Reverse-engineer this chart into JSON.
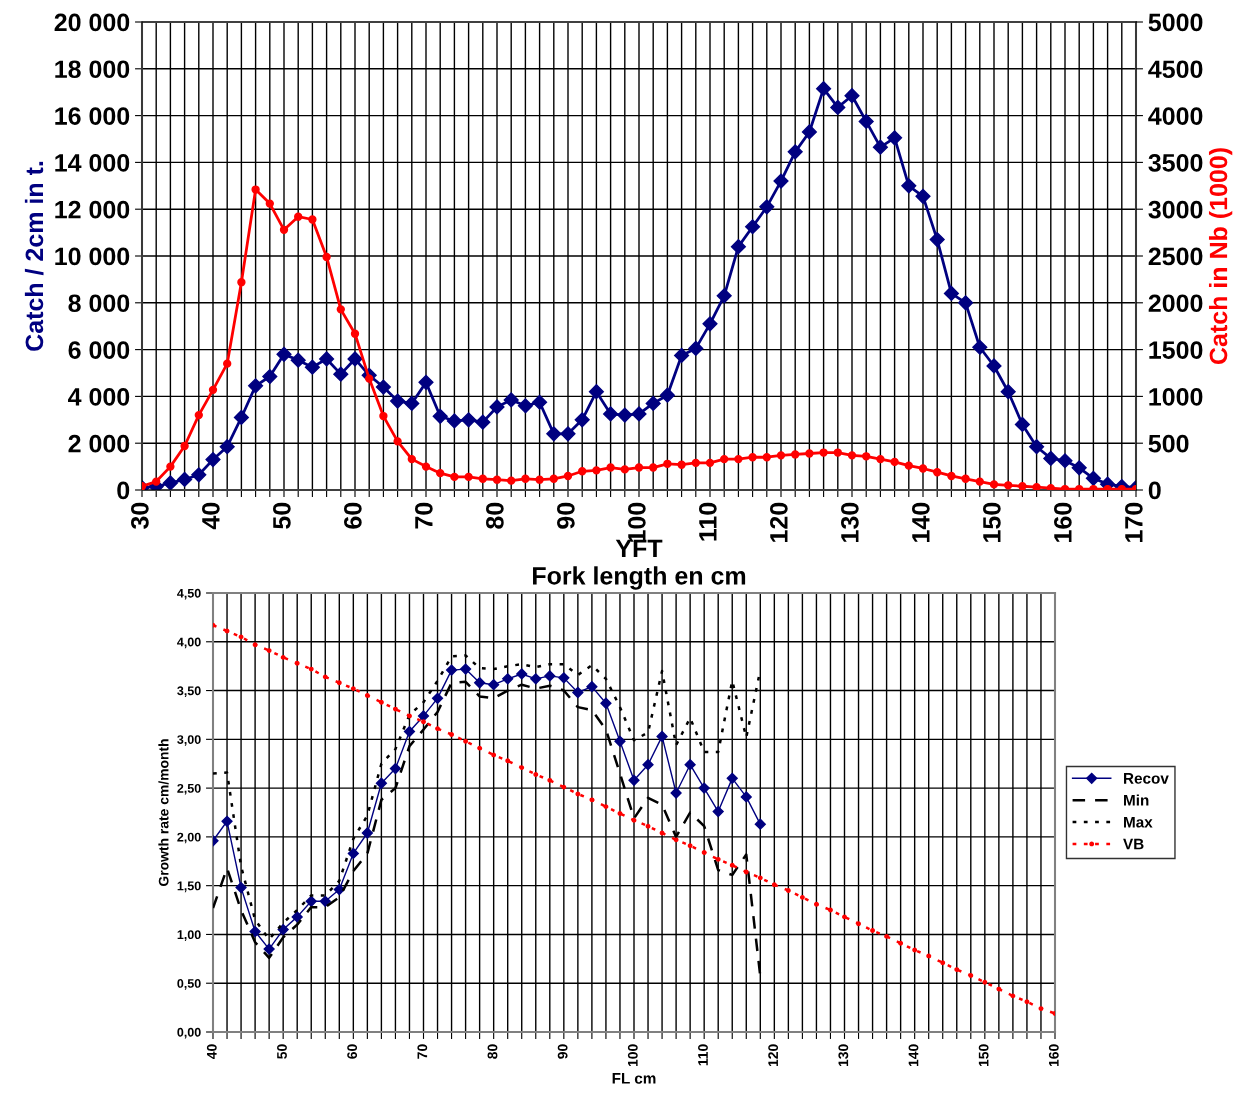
{
  "chart_data": [
    {
      "type": "line",
      "title": "YFT",
      "xlabel": "Fork length en cm",
      "ylabel": "Catch / 2cm in t.",
      "y2label": "Catch in Nb (1000)",
      "x": [
        30,
        32,
        34,
        36,
        38,
        40,
        42,
        44,
        46,
        48,
        50,
        52,
        54,
        56,
        58,
        60,
        62,
        64,
        66,
        68,
        70,
        72,
        74,
        76,
        78,
        80,
        82,
        84,
        86,
        88,
        90,
        92,
        94,
        96,
        98,
        100,
        102,
        104,
        106,
        108,
        110,
        112,
        114,
        116,
        118,
        120,
        122,
        124,
        126,
        128,
        130,
        132,
        134,
        136,
        138,
        140,
        142,
        144,
        146,
        148,
        150,
        152,
        154,
        156,
        158,
        160,
        162,
        164,
        166,
        168,
        170
      ],
      "series": [
        {
          "color": "#000080",
          "marker": "diamond",
          "values": [
            100,
            150,
            300,
            450,
            650,
            1300,
            1850,
            3100,
            4450,
            4850,
            5800,
            5550,
            5250,
            5600,
            4950,
            5600,
            4900,
            4400,
            3800,
            3700,
            4600,
            3150,
            2950,
            3000,
            2900,
            3550,
            3850,
            3600,
            3750,
            2400,
            2400,
            3000,
            4200,
            3250,
            3200,
            3250,
            3700,
            4050,
            5750,
            6050,
            7100,
            8300,
            10400,
            11250,
            12100,
            13200,
            14450,
            15300,
            17150,
            16350,
            16850,
            15750,
            14650,
            15050,
            13000,
            12550,
            10700,
            8400,
            8000,
            6100,
            5300,
            4200,
            2800,
            1850,
            1350,
            1250,
            950,
            500,
            250,
            150,
            100
          ]
        },
        {
          "color": "#ff0000",
          "marker": "circle",
          "axis": "y2",
          "values": [
            40,
            90,
            250,
            470,
            800,
            1070,
            1350,
            2220,
            3210,
            3060,
            2780,
            2920,
            2890,
            2490,
            1930,
            1670,
            1190,
            790,
            520,
            330,
            250,
            180,
            140,
            140,
            120,
            110,
            100,
            120,
            110,
            120,
            150,
            200,
            210,
            240,
            220,
            240,
            240,
            280,
            270,
            290,
            290,
            330,
            330,
            350,
            350,
            370,
            380,
            390,
            400,
            400,
            370,
            360,
            330,
            300,
            260,
            230,
            190,
            150,
            120,
            90,
            60,
            50,
            40,
            30,
            20,
            10,
            10,
            10,
            10,
            10,
            10
          ]
        }
      ],
      "xlim": [
        30,
        170
      ],
      "xticks": [
        30,
        {
          "value": 32,
          "label": null
        },
        {
          "value": 34,
          "label": null
        },
        {
          "value": 36,
          "label": null
        },
        {
          "value": 38,
          "label": null
        },
        40,
        {
          "value": 42,
          "label": null
        },
        {
          "value": 44,
          "label": null
        },
        {
          "value": 46,
          "label": null
        },
        {
          "value": 48,
          "label": null
        },
        50,
        {
          "value": 52,
          "label": null
        },
        {
          "value": 54,
          "label": null
        },
        {
          "value": 56,
          "label": null
        },
        {
          "value": 58,
          "label": null
        },
        60,
        {
          "value": 62,
          "label": null
        },
        {
          "value": 64,
          "label": null
        },
        {
          "value": 66,
          "label": null
        },
        {
          "value": 68,
          "label": null
        },
        70,
        {
          "value": 72,
          "label": null
        },
        {
          "value": 74,
          "label": null
        },
        {
          "value": 76,
          "label": null
        },
        {
          "value": 78,
          "label": null
        },
        80,
        {
          "value": 82,
          "label": null
        },
        {
          "value": 84,
          "label": null
        },
        {
          "value": 86,
          "label": null
        },
        {
          "value": 88,
          "label": null
        },
        90,
        {
          "value": 92,
          "label": null
        },
        {
          "value": 94,
          "label": null
        },
        {
          "value": 96,
          "label": null
        },
        {
          "value": 98,
          "label": null
        },
        100,
        {
          "value": 102,
          "label": null
        },
        {
          "value": 104,
          "label": null
        },
        {
          "value": 106,
          "label": null
        },
        {
          "value": 108,
          "label": null
        },
        110,
        {
          "value": 112,
          "label": null
        },
        {
          "value": 114,
          "label": null
        },
        {
          "value": 116,
          "label": null
        },
        {
          "value": 118,
          "label": null
        },
        120,
        {
          "value": 122,
          "label": null
        },
        {
          "value": 124,
          "label": null
        },
        {
          "value": 126,
          "label": null
        },
        {
          "value": 128,
          "label": null
        },
        130,
        {
          "value": 132,
          "label": null
        },
        {
          "value": 134,
          "label": null
        },
        {
          "value": 136,
          "label": null
        },
        {
          "value": 138,
          "label": null
        },
        140,
        {
          "value": 142,
          "label": null
        },
        {
          "value": 144,
          "label": null
        },
        {
          "value": 146,
          "label": null
        },
        {
          "value": 148,
          "label": null
        },
        150,
        {
          "value": 152,
          "label": null
        },
        {
          "value": 154,
          "label": null
        },
        {
          "value": 156,
          "label": null
        },
        {
          "value": 158,
          "label": null
        },
        160,
        {
          "value": 162,
          "label": null
        },
        {
          "value": 164,
          "label": null
        },
        {
          "value": 166,
          "label": null
        },
        {
          "value": 168,
          "label": null
        },
        170
      ],
      "ylim": [
        0,
        20000
      ],
      "yticks": [
        {
          "value": 0,
          "label": "0"
        },
        {
          "value": 2000,
          "label": "2 000"
        },
        {
          "value": 4000,
          "label": "4 000"
        },
        {
          "value": 6000,
          "label": "6 000"
        },
        {
          "value": 8000,
          "label": "8 000"
        },
        {
          "value": 10000,
          "label": "10 000"
        },
        {
          "value": 12000,
          "label": "12 000"
        },
        {
          "value": 14000,
          "label": "14 000"
        },
        {
          "value": 16000,
          "label": "16 000"
        },
        {
          "value": 18000,
          "label": "18 000"
        },
        {
          "value": 20000,
          "label": "20 000"
        }
      ],
      "y2lim": [
        0,
        5000
      ],
      "y2ticks": [
        0,
        500,
        1000,
        1500,
        2000,
        2500,
        3000,
        3500,
        4000,
        4500,
        5000
      ],
      "grid": true,
      "legend": false
    },
    {
      "type": "line",
      "xlabel": "FL cm",
      "ylabel": "Growth rate cm/month",
      "x": [
        40,
        42,
        44,
        46,
        48,
        50,
        52,
        54,
        56,
        58,
        60,
        62,
        64,
        66,
        68,
        70,
        72,
        74,
        76,
        78,
        80,
        82,
        84,
        86,
        88,
        90,
        92,
        94,
        96,
        98,
        100,
        102,
        104,
        106,
        108,
        110,
        112,
        114,
        116,
        118,
        120,
        122,
        124,
        126,
        128,
        130,
        132,
        134,
        136,
        138,
        140,
        142,
        144,
        146,
        148,
        150,
        152,
        154,
        156,
        158,
        160
      ],
      "series": [
        {
          "name": "Recov",
          "color": "#000080",
          "marker": "diamond",
          "line_style": "solid",
          "values": [
            1.96,
            2.16,
            1.48,
            1.03,
            0.85,
            1.05,
            1.18,
            1.34,
            1.34,
            1.46,
            1.83,
            2.04,
            2.55,
            2.7,
            3.08,
            3.24,
            3.42,
            3.71,
            3.72,
            3.58,
            3.56,
            3.62,
            3.67,
            3.62,
            3.65,
            3.63,
            3.48,
            3.54,
            3.37,
            2.98,
            2.58,
            2.74,
            3.03,
            2.45,
            2.74,
            2.5,
            2.26,
            2.6,
            2.41,
            2.13,
            null,
            null,
            null,
            null,
            null,
            null,
            null,
            null,
            null,
            null,
            null,
            null,
            null,
            null,
            null,
            null,
            null,
            null,
            null,
            null,
            null
          ]
        },
        {
          "name": "Min",
          "color": "#000000",
          "marker": "none",
          "line_style": "dashed",
          "values": [
            1.27,
            1.68,
            1.25,
            0.92,
            0.76,
            0.97,
            1.1,
            1.28,
            1.28,
            1.38,
            1.65,
            1.83,
            2.38,
            2.5,
            2.93,
            3.1,
            3.28,
            3.58,
            3.59,
            3.44,
            3.42,
            3.5,
            3.56,
            3.52,
            3.55,
            3.5,
            3.33,
            3.3,
            3.1,
            2.65,
            2.19,
            2.4,
            2.33,
            2.0,
            2.25,
            2.11,
            1.66,
            1.61,
            1.82,
            0.57,
            null,
            null,
            null,
            null,
            null,
            null,
            null,
            null,
            null,
            null,
            null,
            null,
            null,
            null,
            null,
            null,
            null,
            null,
            null,
            null,
            null
          ]
        },
        {
          "name": "Max",
          "color": "#000000",
          "marker": "none",
          "line_style": "dotted",
          "values": [
            2.65,
            2.66,
            1.7,
            1.15,
            0.95,
            1.12,
            1.25,
            1.4,
            1.4,
            1.55,
            1.98,
            2.22,
            2.75,
            2.9,
            3.25,
            3.38,
            3.6,
            3.85,
            3.86,
            3.73,
            3.72,
            3.75,
            3.77,
            3.74,
            3.77,
            3.77,
            3.66,
            3.76,
            3.62,
            3.33,
            2.99,
            3.07,
            3.7,
            2.94,
            3.22,
            2.87,
            2.87,
            3.6,
            3.02,
            3.71,
            null,
            null,
            null,
            null,
            null,
            null,
            null,
            null,
            null,
            null,
            null,
            null,
            null,
            null,
            null,
            null,
            null,
            null,
            null,
            null,
            null
          ]
        },
        {
          "name": "VB",
          "color": "#ff0000",
          "marker": "circle",
          "line_style": "dotted",
          "values": [
            4.17,
            4.11,
            4.05,
            3.97,
            3.91,
            3.84,
            3.78,
            3.72,
            3.64,
            3.58,
            3.52,
            3.45,
            3.38,
            3.31,
            3.24,
            3.18,
            3.11,
            3.05,
            2.98,
            2.91,
            2.84,
            2.78,
            2.71,
            2.64,
            2.58,
            2.51,
            2.44,
            2.38,
            2.31,
            2.24,
            2.17,
            2.11,
            2.04,
            1.97,
            1.91,
            1.84,
            1.77,
            1.71,
            1.64,
            1.58,
            1.51,
            1.45,
            1.38,
            1.31,
            1.25,
            1.18,
            1.11,
            1.04,
            0.98,
            0.91,
            0.84,
            0.78,
            0.71,
            0.64,
            0.58,
            0.51,
            0.44,
            0.37,
            0.31,
            0.24,
            0.19
          ]
        }
      ],
      "xlim": [
        40,
        160
      ],
      "xticks": [
        40,
        {
          "value": 42,
          "label": null
        },
        {
          "value": 44,
          "label": null
        },
        {
          "value": 46,
          "label": null
        },
        {
          "value": 48,
          "label": null
        },
        50,
        {
          "value": 52,
          "label": null
        },
        {
          "value": 54,
          "label": null
        },
        {
          "value": 56,
          "label": null
        },
        {
          "value": 58,
          "label": null
        },
        60,
        {
          "value": 62,
          "label": null
        },
        {
          "value": 64,
          "label": null
        },
        {
          "value": 66,
          "label": null
        },
        {
          "value": 68,
          "label": null
        },
        70,
        {
          "value": 72,
          "label": null
        },
        {
          "value": 74,
          "label": null
        },
        {
          "value": 76,
          "label": null
        },
        {
          "value": 78,
          "label": null
        },
        80,
        {
          "value": 82,
          "label": null
        },
        {
          "value": 84,
          "label": null
        },
        {
          "value": 86,
          "label": null
        },
        {
          "value": 88,
          "label": null
        },
        90,
        {
          "value": 92,
          "label": null
        },
        {
          "value": 94,
          "label": null
        },
        {
          "value": 96,
          "label": null
        },
        {
          "value": 98,
          "label": null
        },
        100,
        {
          "value": 102,
          "label": null
        },
        {
          "value": 104,
          "label": null
        },
        {
          "value": 106,
          "label": null
        },
        {
          "value": 108,
          "label": null
        },
        110,
        {
          "value": 112,
          "label": null
        },
        {
          "value": 114,
          "label": null
        },
        {
          "value": 116,
          "label": null
        },
        {
          "value": 118,
          "label": null
        },
        120,
        {
          "value": 122,
          "label": null
        },
        {
          "value": 124,
          "label": null
        },
        {
          "value": 126,
          "label": null
        },
        {
          "value": 128,
          "label": null
        },
        130,
        {
          "value": 132,
          "label": null
        },
        {
          "value": 134,
          "label": null
        },
        {
          "value": 136,
          "label": null
        },
        {
          "value": 138,
          "label": null
        },
        140,
        {
          "value": 142,
          "label": null
        },
        {
          "value": 144,
          "label": null
        },
        {
          "value": 146,
          "label": null
        },
        {
          "value": 148,
          "label": null
        },
        150,
        {
          "value": 152,
          "label": null
        },
        {
          "value": 154,
          "label": null
        },
        {
          "value": 156,
          "label": null
        },
        {
          "value": 158,
          "label": null
        },
        160
      ],
      "ylim": [
        0,
        4.5
      ],
      "yticks": [
        {
          "value": 0,
          "label": "0,00"
        },
        {
          "value": 0.5,
          "label": "0,50"
        },
        {
          "value": 1,
          "label": "1,00"
        },
        {
          "value": 1.5,
          "label": "1,50"
        },
        {
          "value": 2,
          "label": "2,00"
        },
        {
          "value": 2.5,
          "label": "2,50"
        },
        {
          "value": 3,
          "label": "3,00"
        },
        {
          "value": 3.5,
          "label": "3,50"
        },
        {
          "value": 4,
          "label": "4,00"
        },
        {
          "value": 4.5,
          "label": "4,50"
        }
      ],
      "grid": true,
      "legend": "right"
    }
  ]
}
